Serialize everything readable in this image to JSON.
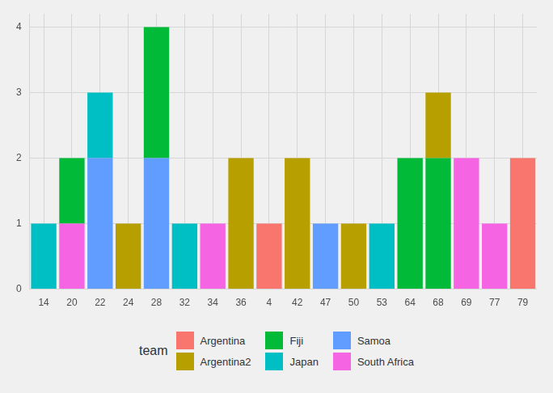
{
  "chart_data": {
    "type": "bar",
    "stacked": true,
    "grid": true,
    "legend": "bottom",
    "legend_title": "team",
    "categories": [
      "14",
      "20",
      "22",
      "24",
      "28",
      "32",
      "34",
      "36",
      "4",
      "42",
      "47",
      "50",
      "53",
      "64",
      "68",
      "69",
      "77",
      "79"
    ],
    "series": [
      {
        "name": "Argentina",
        "color": "#F8766D",
        "values": [
          null,
          null,
          null,
          null,
          null,
          null,
          null,
          null,
          1,
          null,
          null,
          null,
          null,
          null,
          null,
          null,
          null,
          2
        ]
      },
      {
        "name": "Argentina2",
        "color": "#B79F00",
        "values": [
          null,
          null,
          null,
          1,
          null,
          null,
          null,
          2,
          null,
          2,
          null,
          1,
          null,
          null,
          1,
          null,
          null,
          null
        ]
      },
      {
        "name": "Fiji",
        "color": "#00BA38",
        "values": [
          null,
          1,
          null,
          null,
          2,
          null,
          null,
          null,
          null,
          null,
          null,
          null,
          null,
          2,
          2,
          null,
          null,
          null
        ]
      },
      {
        "name": "Japan",
        "color": "#00BFC4",
        "values": [
          1,
          null,
          1,
          null,
          null,
          1,
          null,
          null,
          null,
          null,
          null,
          null,
          1,
          null,
          null,
          null,
          null,
          null
        ]
      },
      {
        "name": "Samoa",
        "color": "#619CFF",
        "values": [
          null,
          null,
          2,
          null,
          2,
          null,
          null,
          null,
          null,
          null,
          1,
          null,
          null,
          null,
          null,
          null,
          null,
          null
        ]
      },
      {
        "name": "South Africa",
        "color": "#F564E3",
        "values": [
          null,
          1,
          null,
          null,
          null,
          null,
          1,
          null,
          null,
          null,
          null,
          null,
          null,
          null,
          null,
          2,
          1,
          null
        ]
      }
    ],
    "ylim": [
      0,
      4.2
    ],
    "yticks": [
      0,
      1,
      2,
      3,
      4
    ]
  }
}
